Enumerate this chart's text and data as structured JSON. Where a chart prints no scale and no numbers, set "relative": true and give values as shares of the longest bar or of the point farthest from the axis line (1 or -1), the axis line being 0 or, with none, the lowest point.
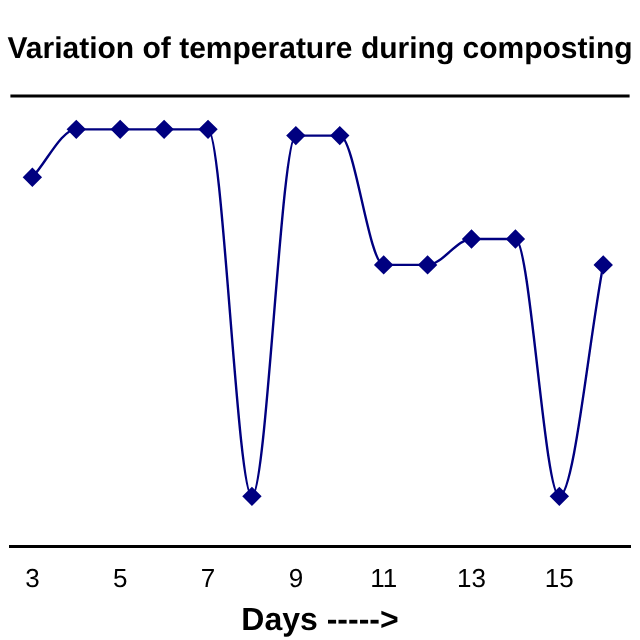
{
  "chart_data": {
    "type": "line",
    "title": "Variation of temperature during composting",
    "xlabel": "Days ----->",
    "relative": true,
    "x": [
      3,
      4,
      5,
      6,
      7,
      8,
      9,
      10,
      11,
      12,
      13,
      14,
      15,
      16
    ],
    "values": [
      0.885,
      1,
      1,
      1,
      1,
      0.12,
      0.985,
      0.985,
      0.675,
      0.675,
      0.737,
      0.737,
      0.12,
      0.675
    ],
    "color": "#000080",
    "marker": "diamond",
    "line_style": "solid",
    "grid": false,
    "legend": false,
    "xlim": [
      2.5,
      16.6
    ],
    "xticks": [
      3,
      5,
      7,
      9,
      11,
      13,
      15
    ]
  }
}
